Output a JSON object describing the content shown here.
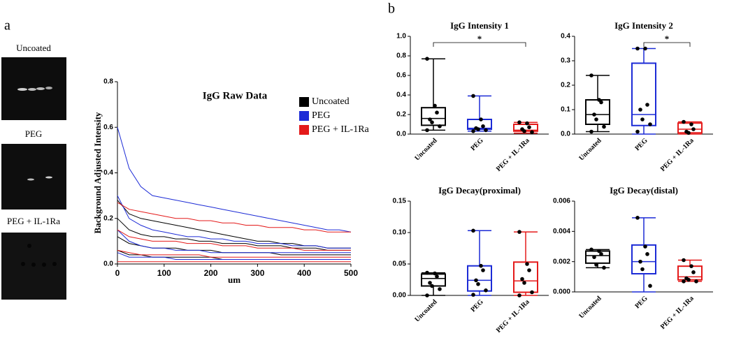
{
  "panels": [
    "a",
    "b"
  ],
  "images": {
    "labels": [
      "Uncoated",
      "PEG",
      "PEG + IL-1Ra"
    ]
  },
  "chart_data": [
    {
      "type": "line",
      "title": "IgG Raw Data",
      "xlabel": "um",
      "ylabel": "Background Adjusted Intensity",
      "xlim": [
        0,
        500
      ],
      "xticks": [
        0,
        100,
        200,
        300,
        400,
        500
      ],
      "ylim": [
        0,
        0.8
      ],
      "yticks": [
        {
          "value": 0,
          "label": "0.0"
        },
        0.2,
        0.4,
        0.6,
        0.8
      ],
      "x": [
        0,
        25,
        50,
        75,
        100,
        125,
        150,
        175,
        200,
        225,
        250,
        275,
        300,
        325,
        350,
        375,
        400,
        425,
        450,
        475,
        500
      ],
      "series": [
        {
          "name": "Uncoated",
          "color": "#000000",
          "values": [
            [
              0.28,
              0.22,
              0.2,
              0.19,
              0.18,
              0.17,
              0.16,
              0.15,
              0.14,
              0.13,
              0.12,
              0.11,
              0.1,
              0.1,
              0.09,
              0.09,
              0.08,
              0.08,
              0.07,
              0.07,
              0.07
            ],
            [
              0.2,
              0.15,
              0.13,
              0.12,
              0.12,
              0.11,
              0.11,
              0.1,
              0.1,
              0.09,
              0.09,
              0.09,
              0.08,
              0.08,
              0.08,
              0.07,
              0.07,
              0.07,
              0.06,
              0.06,
              0.06
            ],
            [
              0.12,
              0.09,
              0.08,
              0.07,
              0.07,
              0.07,
              0.06,
              0.06,
              0.06,
              0.05,
              0.05,
              0.05,
              0.05,
              0.05,
              0.04,
              0.04,
              0.04,
              0.04,
              0.04,
              0.04,
              0.04
            ],
            [
              0.06,
              0.04,
              0.04,
              0.03,
              0.03,
              0.03,
              0.03,
              0.03,
              0.03,
              0.02,
              0.02,
              0.02,
              0.02,
              0.02,
              0.02,
              0.02,
              0.02,
              0.02,
              0.02,
              0.02,
              0.02
            ]
          ]
        },
        {
          "name": "PEG",
          "color": "#1c2bd6",
          "values": [
            [
              0.6,
              0.42,
              0.34,
              0.3,
              0.29,
              0.28,
              0.27,
              0.26,
              0.25,
              0.24,
              0.23,
              0.22,
              0.21,
              0.2,
              0.19,
              0.18,
              0.17,
              0.16,
              0.15,
              0.15,
              0.14
            ],
            [
              0.3,
              0.2,
              0.17,
              0.15,
              0.14,
              0.13,
              0.12,
              0.12,
              0.11,
              0.11,
              0.1,
              0.1,
              0.09,
              0.09,
              0.09,
              0.08,
              0.08,
              0.08,
              0.07,
              0.07,
              0.07
            ],
            [
              0.15,
              0.1,
              0.08,
              0.07,
              0.07,
              0.06,
              0.06,
              0.06,
              0.05,
              0.05,
              0.05,
              0.05,
              0.05,
              0.05,
              0.05,
              0.05,
              0.05,
              0.05,
              0.05,
              0.05,
              0.05
            ],
            [
              0.05,
              0.03,
              0.03,
              0.03,
              0.03,
              0.02,
              0.02,
              0.02,
              0.02,
              0.02,
              0.02,
              0.02,
              0.02,
              0.02,
              0.02,
              0.02,
              0.02,
              0.02,
              0.02,
              0.02,
              0.02
            ]
          ]
        },
        {
          "name": "PEG + IL-1Ra",
          "color": "#e41a1a",
          "values": [
            [
              0.27,
              0.24,
              0.23,
              0.22,
              0.21,
              0.2,
              0.2,
              0.19,
              0.19,
              0.18,
              0.18,
              0.17,
              0.17,
              0.16,
              0.16,
              0.16,
              0.15,
              0.15,
              0.14,
              0.14,
              0.14
            ],
            [
              0.15,
              0.12,
              0.11,
              0.1,
              0.1,
              0.1,
              0.09,
              0.09,
              0.09,
              0.08,
              0.08,
              0.08,
              0.07,
              0.07,
              0.07,
              0.07,
              0.06,
              0.06,
              0.06,
              0.06,
              0.06
            ],
            [
              0.06,
              0.05,
              0.04,
              0.04,
              0.04,
              0.04,
              0.04,
              0.04,
              0.03,
              0.03,
              0.03,
              0.03,
              0.03,
              0.03,
              0.03,
              0.03,
              0.03,
              0.03,
              0.03,
              0.03,
              0.03
            ],
            [
              0.01,
              0.01,
              0.01,
              0.01,
              0.01,
              0.01,
              0.01,
              0.01,
              0.01,
              0.01,
              0.01,
              0.01,
              0.01,
              0.01,
              0.01,
              0.01,
              0.01,
              0.01,
              0.01,
              0.01,
              0.01
            ]
          ]
        }
      ]
    },
    {
      "type": "box",
      "title": "IgG Intensity 1",
      "categories": [
        "Uncoated",
        "PEG",
        "PEG + IL-1Ra"
      ],
      "colors": [
        "#000000",
        "#1c2bd6",
        "#e41a1a"
      ],
      "ylim": [
        0,
        1.0
      ],
      "yticks": [
        {
          "value": 0,
          "label": "0.0"
        },
        0.2,
        0.4,
        0.6,
        0.8,
        {
          "value": 1,
          "label": "1.0"
        }
      ],
      "boxes": [
        {
          "min": 0.04,
          "q1": 0.09,
          "median": 0.16,
          "q3": 0.27,
          "max": 0.77,
          "points": [
            0.77,
            0.29,
            0.22,
            0.15,
            0.12,
            0.08,
            0.04
          ]
        },
        {
          "min": 0.03,
          "q1": 0.05,
          "median": 0.06,
          "q3": 0.15,
          "max": 0.39,
          "points": [
            0.39,
            0.15,
            0.08,
            0.06,
            0.05,
            0.04,
            0.03
          ]
        },
        {
          "min": 0.01,
          "q1": 0.03,
          "median": 0.04,
          "q3": 0.1,
          "max": 0.12,
          "points": [
            0.12,
            0.11,
            0.07,
            0.05,
            0.03,
            0.02
          ]
        }
      ],
      "annotations": [
        {
          "text": "*",
          "between": [
            "Uncoated",
            "PEG + IL-1Ra"
          ]
        }
      ]
    },
    {
      "type": "box",
      "title": "IgG Intensity 2",
      "categories": [
        "Uncoated",
        "PEG",
        "PEG + IL-1Ra"
      ],
      "colors": [
        "#000000",
        "#1c2bd6",
        "#e41a1a"
      ],
      "ylim": [
        0,
        0.4
      ],
      "yticks": [
        {
          "value": 0,
          "label": "0.0"
        },
        0.1,
        0.2,
        0.3,
        0.4
      ],
      "boxes": [
        {
          "min": 0.01,
          "q1": 0.04,
          "median": 0.08,
          "q3": 0.14,
          "max": 0.24,
          "points": [
            0.24,
            0.14,
            0.13,
            0.08,
            0.06,
            0.03,
            0.01
          ]
        },
        {
          "min": 0.0,
          "q1": 0.035,
          "median": 0.08,
          "q3": 0.29,
          "max": 0.35,
          "points": [
            0.35,
            0.35,
            0.12,
            0.1,
            0.06,
            0.04,
            0.01
          ]
        },
        {
          "min": 0.0,
          "q1": 0.005,
          "median": 0.02,
          "q3": 0.045,
          "max": 0.05,
          "points": [
            0.05,
            0.04,
            0.02,
            0.01,
            0.005
          ]
        }
      ],
      "annotations": [
        {
          "text": "*",
          "between": [
            "PEG",
            "PEG + IL-1Ra"
          ]
        }
      ]
    },
    {
      "type": "box",
      "title": "IgG Decay(proximal)",
      "categories": [
        "Uncoated",
        "PEG",
        "PEG + IL-1Ra"
      ],
      "colors": [
        "#000000",
        "#1c2bd6",
        "#e41a1a"
      ],
      "ylim": [
        0,
        0.15
      ],
      "yticks": [
        {
          "value": 0,
          "label": "0.00"
        },
        {
          "value": 0.05,
          "label": "0.05"
        },
        {
          "value": 0.1,
          "label": "0.10"
        },
        {
          "value": 0.15,
          "label": "0.15"
        }
      ],
      "boxes": [
        {
          "min": 0.0,
          "q1": 0.015,
          "median": 0.027,
          "q3": 0.034,
          "max": 0.036,
          "points": [
            0.036,
            0.035,
            0.03,
            0.02,
            0.015,
            0.01,
            0.0
          ]
        },
        {
          "min": 0.0,
          "q1": 0.007,
          "median": 0.024,
          "q3": 0.047,
          "max": 0.103,
          "points": [
            0.103,
            0.047,
            0.04,
            0.024,
            0.018,
            0.008,
            0.001
          ]
        },
        {
          "min": 0.0,
          "q1": 0.005,
          "median": 0.023,
          "q3": 0.053,
          "max": 0.101,
          "points": [
            0.101,
            0.05,
            0.04,
            0.026,
            0.02,
            0.005,
            0.0
          ]
        }
      ]
    },
    {
      "type": "box",
      "title": "IgG Decay(distal)",
      "categories": [
        "Uncoated",
        "PEG",
        "PEG + IL-1Ra"
      ],
      "colors": [
        "#000000",
        "#1c2bd6",
        "#e41a1a"
      ],
      "ylim": [
        0,
        0.006
      ],
      "yticks": [
        {
          "value": 0,
          "label": "0.000"
        },
        {
          "value": 0.002,
          "label": "0.002"
        },
        {
          "value": 0.004,
          "label": "0.004"
        },
        {
          "value": 0.006,
          "label": "0.006"
        }
      ],
      "boxes": [
        {
          "min": 0.0016,
          "q1": 0.0019,
          "median": 0.0024,
          "q3": 0.0027,
          "max": 0.0028,
          "points": [
            0.0028,
            0.0027,
            0.0025,
            0.0023,
            0.0018,
            0.0016
          ]
        },
        {
          "min": 0.0,
          "q1": 0.0012,
          "median": 0.002,
          "q3": 0.0031,
          "max": 0.0049,
          "points": [
            0.0049,
            0.003,
            0.0025,
            0.002,
            0.0015,
            0.0004
          ]
        },
        {
          "min": 0.0007,
          "q1": 0.0008,
          "median": 0.001,
          "q3": 0.0017,
          "max": 0.0021,
          "points": [
            0.0021,
            0.0017,
            0.0013,
            0.0009,
            0.0008,
            0.0007,
            0.0007
          ]
        }
      ]
    }
  ]
}
